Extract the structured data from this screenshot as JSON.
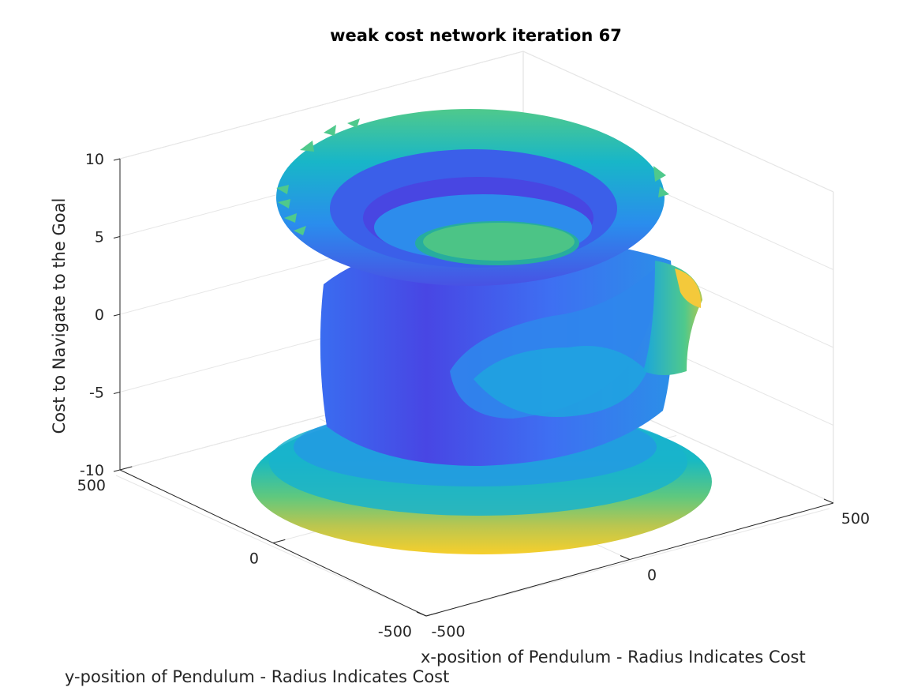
{
  "chart_data": {
    "type": "surface",
    "title": "weak cost network iteration 67",
    "xlabel": "x-position of Pendulum - Radius Indicates Cost",
    "ylabel": "y-position of Pendulum - Radius Indicates Cost",
    "zlabel": "Cost to Navigate to the Goal",
    "xlim": [
      -500,
      500
    ],
    "ylim": [
      -500,
      500
    ],
    "zlim": [
      -10,
      10
    ],
    "x_ticks": [
      "-500",
      "0",
      "500"
    ],
    "y_ticks": [
      "-500",
      "0",
      "500"
    ],
    "z_ticks": [
      "-10",
      "-5",
      "0",
      "5",
      "10"
    ],
    "grid": true,
    "colormap": [
      "#3e26a8",
      "#4745e6",
      "#2f7ff0",
      "#1ca9dc",
      "#15c0b8",
      "#4fc98c",
      "#a7c657",
      "#f5bf3b",
      "#f9d924"
    ],
    "surface_bands": [
      {
        "z": -9,
        "radius_cost": 9.5
      },
      {
        "z": -8,
        "radius_cost": 8.2
      },
      {
        "z": -7,
        "radius_cost": 6.5
      },
      {
        "z": -5,
        "radius_cost": 4.2
      },
      {
        "z": -2,
        "radius_cost": 3.2
      },
      {
        "z": 1,
        "radius_cost": 3.0
      },
      {
        "z": 4,
        "radius_cost": 3.6
      },
      {
        "z": 6,
        "radius_cost": 5.0
      },
      {
        "z": 8,
        "radius_cost": 6.2
      }
    ]
  }
}
